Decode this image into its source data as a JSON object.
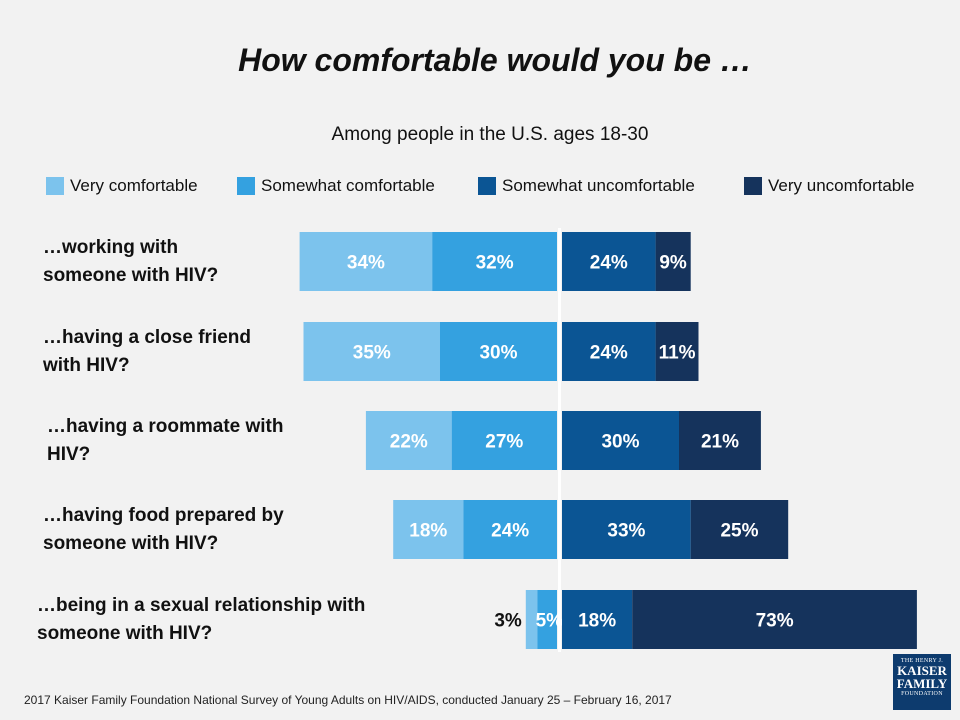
{
  "title": "How comfortable would you be …",
  "subtitle": "Among people in the U.S. ages 18-30",
  "footnote": "2017 Kaiser Family Foundation National Survey of Young Adults on HIV/AIDS, conducted January 25 – February 16, 2017",
  "logo": {
    "line1": "THE HENRY J.",
    "line2": "KAISER",
    "line3": "FAMILY",
    "line4": "FOUNDATION"
  },
  "colors": {
    "very_comfortable": "#7cc3ed",
    "somewhat_comfortable": "#34a1e0",
    "somewhat_uncomfortable": "#0b5594",
    "very_uncomfortable": "#15335c",
    "background": "#f2f2f2"
  },
  "chart_data": {
    "type": "bar",
    "orientation": "horizontal",
    "stacking": "diverging",
    "categories": [
      "…working with someone with HIV?",
      "…having a close friend with HIV?",
      "…having a roommate with HIV?",
      "…having food prepared by someone with HIV?",
      "…being in a sexual relationship with someone with HIV?"
    ],
    "category_lines": [
      [
        "…working with",
        "someone with HIV?"
      ],
      [
        "…having a close friend",
        "with HIV?"
      ],
      [
        "…having a roommate with",
        "HIV?"
      ],
      [
        "…having food prepared by",
        "someone with HIV?"
      ],
      [
        "…being in a sexual relationship with",
        "someone with HIV?"
      ]
    ],
    "series": [
      {
        "name": "Very comfortable",
        "side": "left",
        "values": [
          34,
          35,
          22,
          18,
          3
        ],
        "labels": [
          "34%",
          "35%",
          "22%",
          "18%",
          "3%"
        ]
      },
      {
        "name": "Somewhat comfortable",
        "side": "left",
        "values": [
          32,
          30,
          27,
          24,
          5
        ],
        "labels": [
          "32%",
          "30%",
          "27%",
          "24%",
          "5%"
        ]
      },
      {
        "name": "Somewhat uncomfortable",
        "side": "right",
        "values": [
          24,
          24,
          30,
          33,
          18
        ],
        "labels": [
          "24%",
          "24%",
          "30%",
          "33%",
          "18%"
        ]
      },
      {
        "name": "Very uncomfortable",
        "side": "right",
        "values": [
          9,
          11,
          21,
          25,
          73
        ],
        "labels": [
          "9%",
          "11%",
          "21%",
          "25%",
          "73%"
        ]
      }
    ],
    "legend": "top",
    "grid": false
  }
}
